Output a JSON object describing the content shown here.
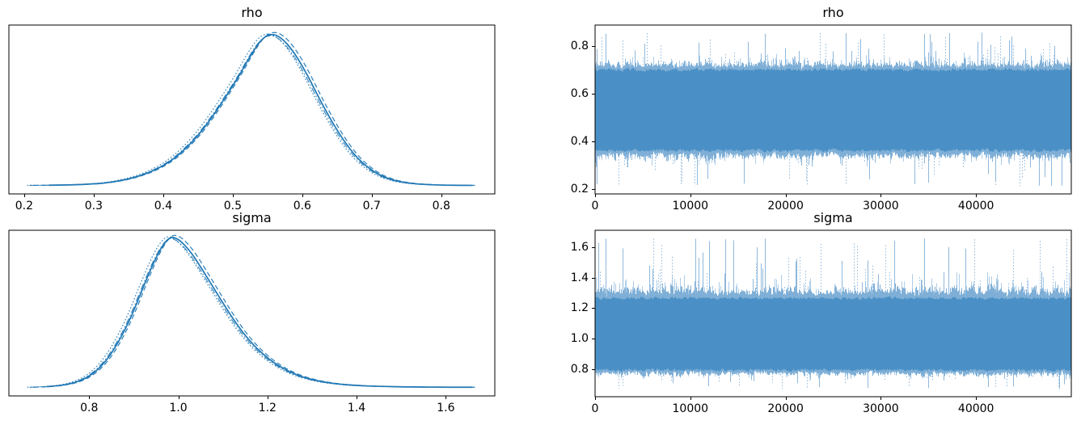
{
  "figure": {
    "background": "#ffffff",
    "series_color": "#1f77b4",
    "trace_core_color": "#4a90c6",
    "trace_mid_color": "#7fafd6",
    "trace_light_color": "#aecde8",
    "trace_spike_color": "#8fb8db",
    "spine_color": "#000000",
    "text_color": "#000000"
  },
  "chart_data": [
    {
      "id": "rho-kde",
      "type": "area",
      "plot_kind": "kde-density",
      "title": "rho",
      "xlabel": "",
      "ylabel": "",
      "xlim": [
        0.178,
        0.877
      ],
      "xticks": [
        0.2,
        0.3,
        0.4,
        0.5,
        0.6,
        0.7,
        0.8
      ],
      "xtick_labels": [
        "0.2",
        "0.3",
        "0.4",
        "0.5",
        "0.6",
        "0.7",
        "0.8"
      ],
      "data_range": [
        0.21,
        0.845
      ],
      "peak_x": 0.553,
      "n_chains": 4,
      "line_styles": [
        "solid",
        "dashed",
        "dashdot",
        "dotted"
      ],
      "grid": false,
      "legend": "none",
      "curve": [
        [
          0.21,
          0.003
        ],
        [
          0.235,
          0.004
        ],
        [
          0.262,
          0.006
        ],
        [
          0.288,
          0.01
        ],
        [
          0.312,
          0.017
        ],
        [
          0.336,
          0.032
        ],
        [
          0.36,
          0.057
        ],
        [
          0.384,
          0.096
        ],
        [
          0.408,
          0.155
        ],
        [
          0.43,
          0.235
        ],
        [
          0.452,
          0.34
        ],
        [
          0.472,
          0.46
        ],
        [
          0.492,
          0.595
        ],
        [
          0.51,
          0.725
        ],
        [
          0.524,
          0.835
        ],
        [
          0.536,
          0.92
        ],
        [
          0.546,
          0.968
        ],
        [
          0.556,
          0.985
        ],
        [
          0.566,
          0.972
        ],
        [
          0.578,
          0.925
        ],
        [
          0.592,
          0.84
        ],
        [
          0.608,
          0.715
        ],
        [
          0.625,
          0.565
        ],
        [
          0.642,
          0.425
        ],
        [
          0.66,
          0.295
        ],
        [
          0.678,
          0.19
        ],
        [
          0.697,
          0.113
        ],
        [
          0.716,
          0.062
        ],
        [
          0.738,
          0.03
        ],
        [
          0.762,
          0.014
        ],
        [
          0.788,
          0.007
        ],
        [
          0.815,
          0.004
        ],
        [
          0.845,
          0.003
        ]
      ]
    },
    {
      "id": "rho-trace",
      "type": "line",
      "plot_kind": "mcmc-trace",
      "title": "rho",
      "xlabel": "",
      "ylabel": "",
      "xlim": [
        0,
        50000
      ],
      "xticks": [
        0,
        10000,
        20000,
        30000,
        40000
      ],
      "xtick_labels": [
        "0",
        "10000",
        "20000",
        "30000",
        "40000"
      ],
      "ylim": [
        0.178,
        0.887
      ],
      "yticks": [
        0.2,
        0.4,
        0.6,
        0.8
      ],
      "ytick_labels": [
        "0.2",
        "0.4",
        "0.6",
        "0.8"
      ],
      "n_draws": 50000,
      "n_chains": 4,
      "mean": 0.536,
      "band_core": [
        0.35,
        0.71
      ],
      "band_mid": [
        0.295,
        0.765
      ],
      "band_extreme": [
        0.21,
        0.855
      ],
      "spike_prob_up": 0.12,
      "spike_prob_down": 0.12,
      "grid": false,
      "legend": "none"
    },
    {
      "id": "sigma-kde",
      "type": "area",
      "plot_kind": "kde-density",
      "title": "sigma",
      "xlabel": "",
      "ylabel": "",
      "xlim": [
        0.62,
        1.71
      ],
      "xticks": [
        0.8,
        1.0,
        1.2,
        1.4,
        1.6
      ],
      "xtick_labels": [
        "0.8",
        "1.0",
        "1.2",
        "1.4",
        "1.6"
      ],
      "data_range": [
        0.67,
        1.66
      ],
      "peak_x": 0.984,
      "n_chains": 4,
      "line_styles": [
        "solid",
        "dashed",
        "dashdot",
        "dotted"
      ],
      "grid": false,
      "legend": "none",
      "curve": [
        [
          0.67,
          0.004
        ],
        [
          0.705,
          0.008
        ],
        [
          0.738,
          0.017
        ],
        [
          0.768,
          0.036
        ],
        [
          0.795,
          0.07
        ],
        [
          0.82,
          0.125
        ],
        [
          0.845,
          0.21
        ],
        [
          0.87,
          0.33
        ],
        [
          0.895,
          0.48
        ],
        [
          0.918,
          0.645
        ],
        [
          0.94,
          0.8
        ],
        [
          0.958,
          0.91
        ],
        [
          0.972,
          0.972
        ],
        [
          0.984,
          1.0
        ],
        [
          0.998,
          0.99
        ],
        [
          1.014,
          0.95
        ],
        [
          1.032,
          0.885
        ],
        [
          1.052,
          0.795
        ],
        [
          1.074,
          0.69
        ],
        [
          1.098,
          0.575
        ],
        [
          1.124,
          0.455
        ],
        [
          1.15,
          0.35
        ],
        [
          1.178,
          0.258
        ],
        [
          1.208,
          0.182
        ],
        [
          1.24,
          0.122
        ],
        [
          1.272,
          0.08
        ],
        [
          1.306,
          0.051
        ],
        [
          1.342,
          0.032
        ],
        [
          1.38,
          0.02
        ],
        [
          1.42,
          0.013
        ],
        [
          1.465,
          0.009
        ],
        [
          1.515,
          0.006
        ],
        [
          1.565,
          0.005
        ],
        [
          1.615,
          0.004
        ],
        [
          1.66,
          0.004
        ]
      ]
    },
    {
      "id": "sigma-trace",
      "type": "line",
      "plot_kind": "mcmc-trace",
      "title": "sigma",
      "xlabel": "",
      "ylabel": "",
      "xlim": [
        0,
        50000
      ],
      "xticks": [
        0,
        10000,
        20000,
        30000,
        40000
      ],
      "xtick_labels": [
        "0",
        "10000",
        "20000",
        "30000",
        "40000"
      ],
      "ylim": [
        0.62,
        1.71
      ],
      "yticks": [
        0.8,
        1.0,
        1.2,
        1.4,
        1.6
      ],
      "ytick_labels": [
        "0.8",
        "1.0",
        "1.2",
        "1.4",
        "1.6"
      ],
      "n_draws": 50000,
      "n_chains": 4,
      "mean": 1.02,
      "band_core": [
        0.78,
        1.28
      ],
      "band_mid": [
        0.72,
        1.4
      ],
      "band_extreme": [
        0.67,
        1.66
      ],
      "spike_prob_up": 0.14,
      "spike_prob_down": 0.09,
      "grid": false,
      "legend": "none"
    }
  ]
}
